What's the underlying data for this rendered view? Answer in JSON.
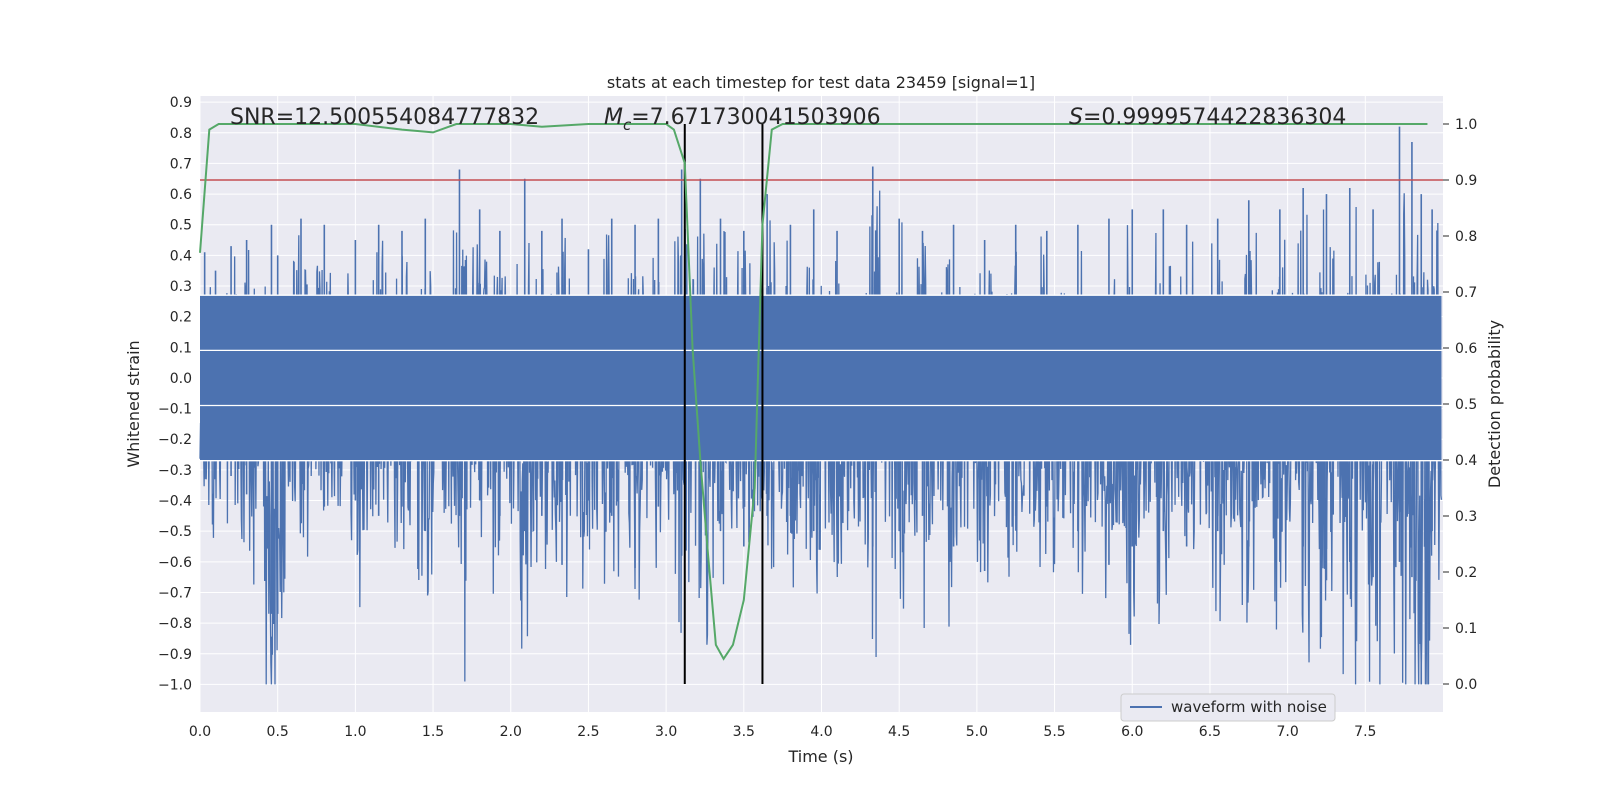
{
  "chart_data": {
    "type": "line",
    "title": "stats at each timestep for test data 23459 [signal=1]",
    "xlabel": "Time (s)",
    "ylabel_left": "Whitened strain",
    "ylabel_right": "Detection probability",
    "xlim": [
      0.0,
      8.0
    ],
    "ylim_left": [
      -1.09,
      0.92
    ],
    "ylim_right": [
      -0.05,
      1.05
    ],
    "x_ticks": [
      "0.0",
      "0.5",
      "1.0",
      "1.5",
      "2.0",
      "2.5",
      "3.0",
      "3.5",
      "4.0",
      "4.5",
      "5.0",
      "5.5",
      "6.0",
      "6.5",
      "7.0",
      "7.5"
    ],
    "y_ticks_left": [
      "0.9",
      "0.8",
      "0.7",
      "0.6",
      "0.5",
      "0.4",
      "0.3",
      "0.2",
      "0.1",
      "0.0",
      "−0.1",
      "−0.2",
      "−0.3",
      "−0.4",
      "−0.5",
      "−0.6",
      "−0.7",
      "−0.8",
      "−0.9",
      "−1.0"
    ],
    "y_ticks_right": [
      "1.0",
      "0.9",
      "0.8",
      "0.7",
      "0.6",
      "0.5",
      "0.4",
      "0.3",
      "0.2",
      "0.1",
      "0.0"
    ],
    "grid": true,
    "legend": {
      "placement": "lower-right",
      "entries": [
        "waveform with noise"
      ]
    },
    "annotations": {
      "snr": "SNR=12.500554084777832",
      "mc_symbol": "M",
      "mc_sub": "c",
      "mc_value": "=7.671730041503906",
      "s_symbol": "S",
      "s_value": "=0.9999574422836304"
    },
    "threshold": {
      "y_prob": 0.9,
      "color": "#c44e52"
    },
    "markers_x": [
      3.12,
      3.62
    ],
    "series": [
      {
        "name": "waveform with noise",
        "axis": "left",
        "color": "#4c72b0",
        "description_stats": {
          "x_start": 0.0,
          "x_end": 8.0
        },
        "peaks": [
          [
            0.03,
            0.41,
            -0.33
          ],
          [
            0.1,
            0.35,
            -0.3
          ],
          [
            0.2,
            0.43,
            -0.32
          ],
          [
            0.3,
            0.45,
            -0.38
          ],
          [
            0.46,
            0.5,
            -0.77
          ],
          [
            0.5,
            0.4,
            -0.77
          ],
          [
            0.65,
            0.52,
            -0.4
          ],
          [
            0.8,
            0.5,
            -0.42
          ],
          [
            1.0,
            0.45,
            -0.4
          ],
          [
            1.15,
            0.5,
            -0.45
          ],
          [
            1.3,
            0.48,
            -0.42
          ],
          [
            1.45,
            0.52,
            -0.5
          ],
          [
            1.67,
            0.68,
            -0.45
          ],
          [
            1.8,
            0.55,
            -0.4
          ],
          [
            1.93,
            0.48,
            -0.45
          ],
          [
            2.09,
            0.65,
            -0.5
          ],
          [
            2.2,
            0.48,
            -0.45
          ],
          [
            2.33,
            0.52,
            -0.61
          ],
          [
            2.5,
            0.42,
            -0.4
          ],
          [
            2.65,
            0.52,
            -0.45
          ],
          [
            2.8,
            0.5,
            -0.62
          ],
          [
            2.95,
            0.52,
            -0.42
          ],
          [
            3.1,
            0.68,
            -0.58
          ],
          [
            3.22,
            0.65,
            -0.55
          ],
          [
            3.35,
            0.52,
            -0.5
          ],
          [
            3.5,
            0.48,
            -0.55
          ],
          [
            3.65,
            0.6,
            -0.45
          ],
          [
            3.8,
            0.5,
            -0.45
          ],
          [
            3.95,
            0.55,
            -0.5
          ],
          [
            4.1,
            0.48,
            -0.45
          ],
          [
            4.33,
            0.69,
            -0.55
          ],
          [
            4.5,
            0.52,
            -0.5
          ],
          [
            4.65,
            0.48,
            -0.45
          ],
          [
            4.85,
            0.5,
            -0.55
          ],
          [
            5.05,
            0.45,
            -0.63
          ],
          [
            5.25,
            0.5,
            -0.45
          ],
          [
            5.45,
            0.48,
            -0.42
          ],
          [
            5.65,
            0.5,
            -0.5
          ],
          [
            5.85,
            0.52,
            -0.61
          ],
          [
            6.0,
            0.55,
            -0.55
          ],
          [
            6.2,
            0.55,
            -0.5
          ],
          [
            6.35,
            0.5,
            -0.55
          ],
          [
            6.55,
            0.52,
            -0.5
          ],
          [
            6.75,
            0.58,
            -0.55
          ],
          [
            6.95,
            0.55,
            -0.6
          ],
          [
            7.1,
            0.62,
            -0.55
          ],
          [
            7.25,
            0.6,
            -0.66
          ],
          [
            7.4,
            0.62,
            -0.6
          ],
          [
            7.55,
            0.55,
            -0.65
          ],
          [
            7.72,
            0.82,
            -0.6
          ],
          [
            7.8,
            0.77,
            -0.65
          ],
          [
            7.86,
            0.6,
            -1.0
          ],
          [
            7.93,
            0.55,
            -0.5
          ]
        ]
      },
      {
        "name": "detection probability",
        "axis": "right",
        "color": "#55a868",
        "x": [
          0.0,
          0.06,
          0.12,
          0.3,
          0.6,
          1.0,
          1.3,
          1.5,
          1.65,
          2.0,
          2.2,
          2.5,
          2.8,
          3.0,
          3.05,
          3.12,
          3.17,
          3.22,
          3.27,
          3.32,
          3.37,
          3.43,
          3.5,
          3.57,
          3.62,
          3.68,
          3.75,
          4.0,
          5.0,
          6.0,
          7.0,
          7.9
        ],
        "y": [
          0.77,
          0.99,
          1.0,
          1.0,
          1.0,
          1.0,
          0.99,
          0.985,
          1.0,
          1.0,
          0.995,
          1.0,
          1.0,
          1.0,
          0.99,
          0.93,
          0.6,
          0.4,
          0.23,
          0.07,
          0.045,
          0.07,
          0.15,
          0.35,
          0.82,
          0.99,
          1.0,
          1.0,
          1.0,
          1.0,
          1.0,
          1.0
        ]
      }
    ]
  }
}
